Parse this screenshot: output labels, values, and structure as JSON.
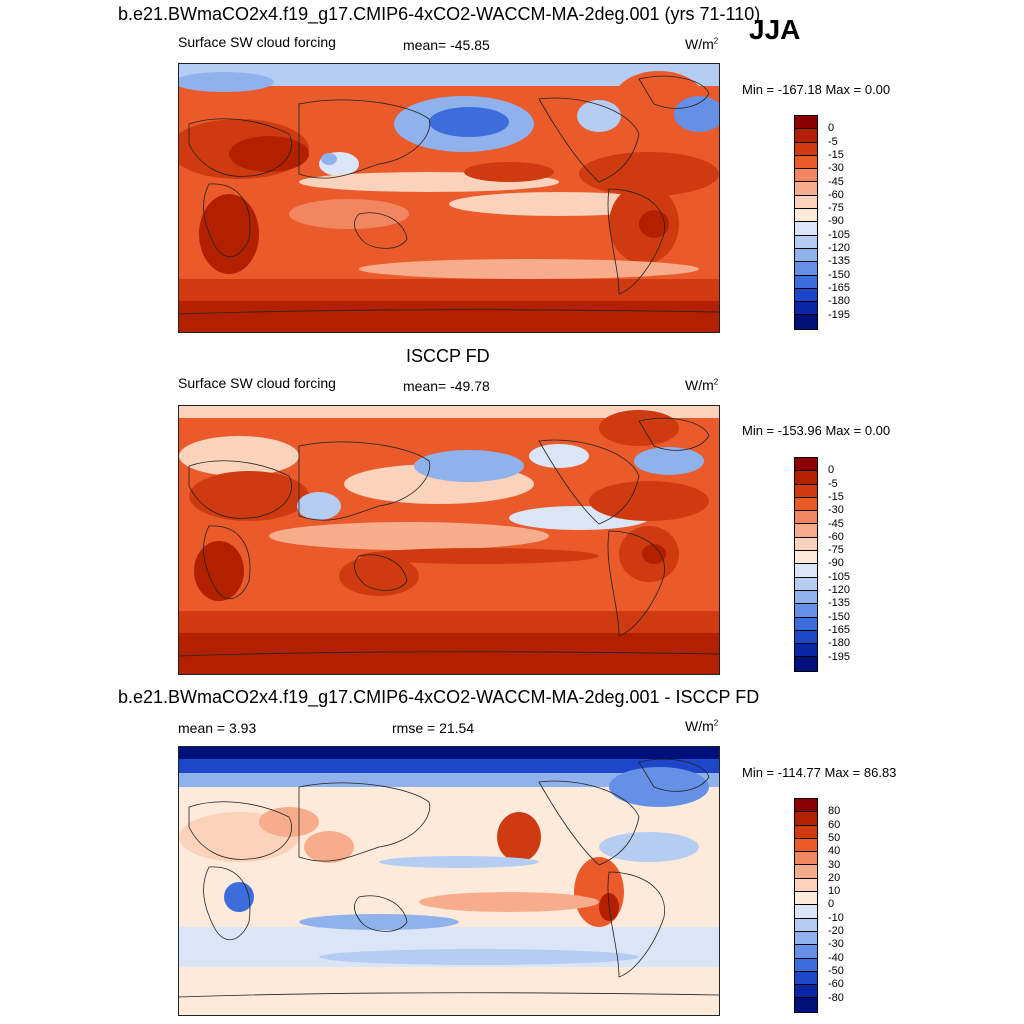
{
  "season": "JJA",
  "panels": [
    {
      "title": "b.e21.BWmaCO2x4.f19_g17.CMIP6-4xCO2-WACCM-MA-2deg.001 (yrs 71-110)",
      "left_label": "Surface SW cloud forcing",
      "center_label": "mean= -45.85",
      "units": "W/m",
      "units_sup": "2",
      "minmax": "Min = -167.18 Max =   0.00",
      "colorbar_labels": [
        "0",
        "-5",
        "-15",
        "-30",
        "-45",
        "-60",
        "-75",
        "-90",
        "-105",
        "-120",
        "-135",
        "-150",
        "-165",
        "-180",
        "-195"
      ]
    },
    {
      "title": "ISCCP FD",
      "left_label": "Surface SW cloud forcing",
      "center_label": "mean= -49.78",
      "units": "W/m",
      "units_sup": "2",
      "minmax": "Min = -153.96 Max =   0.00",
      "colorbar_labels": [
        "0",
        "-5",
        "-15",
        "-30",
        "-45",
        "-60",
        "-75",
        "-90",
        "-105",
        "-120",
        "-135",
        "-150",
        "-165",
        "-180",
        "-195"
      ]
    },
    {
      "title": "b.e21.BWmaCO2x4.f19_g17.CMIP6-4xCO2-WACCM-MA-2deg.001 - ISCCP FD",
      "left_label": "mean =   3.93",
      "center_label": "rmse =  21.54",
      "units": "W/m",
      "units_sup": "2",
      "minmax": "Min = -114.77 Max =  86.83",
      "colorbar_labels": [
        "80",
        "60",
        "50",
        "40",
        "30",
        "20",
        "10",
        "0",
        "-10",
        "-20",
        "-30",
        "-40",
        "-50",
        "-60",
        "-80"
      ]
    }
  ],
  "colors": {
    "sw_palette": [
      "#8b0000",
      "#b22000",
      "#cf3a10",
      "#ea5a2a",
      "#f28660",
      "#f7ad8c",
      "#fbd2bb",
      "#fdeadb",
      "#dae6f7",
      "#b5cdf2",
      "#8fb2ec",
      "#6590e6",
      "#3d6cdc",
      "#1e46c8",
      "#0a25a6",
      "#00107a"
    ],
    "diff_palette": [
      "#8b0000",
      "#b22000",
      "#cf3a10",
      "#ea5a2a",
      "#f28660",
      "#f7ad8c",
      "#fbd2bb",
      "#fdeadb",
      "#dae6f7",
      "#b5cdf2",
      "#8fb2ec",
      "#6590e6",
      "#3d6cdc",
      "#1e46c8",
      "#0a25a6",
      "#00107a"
    ]
  }
}
